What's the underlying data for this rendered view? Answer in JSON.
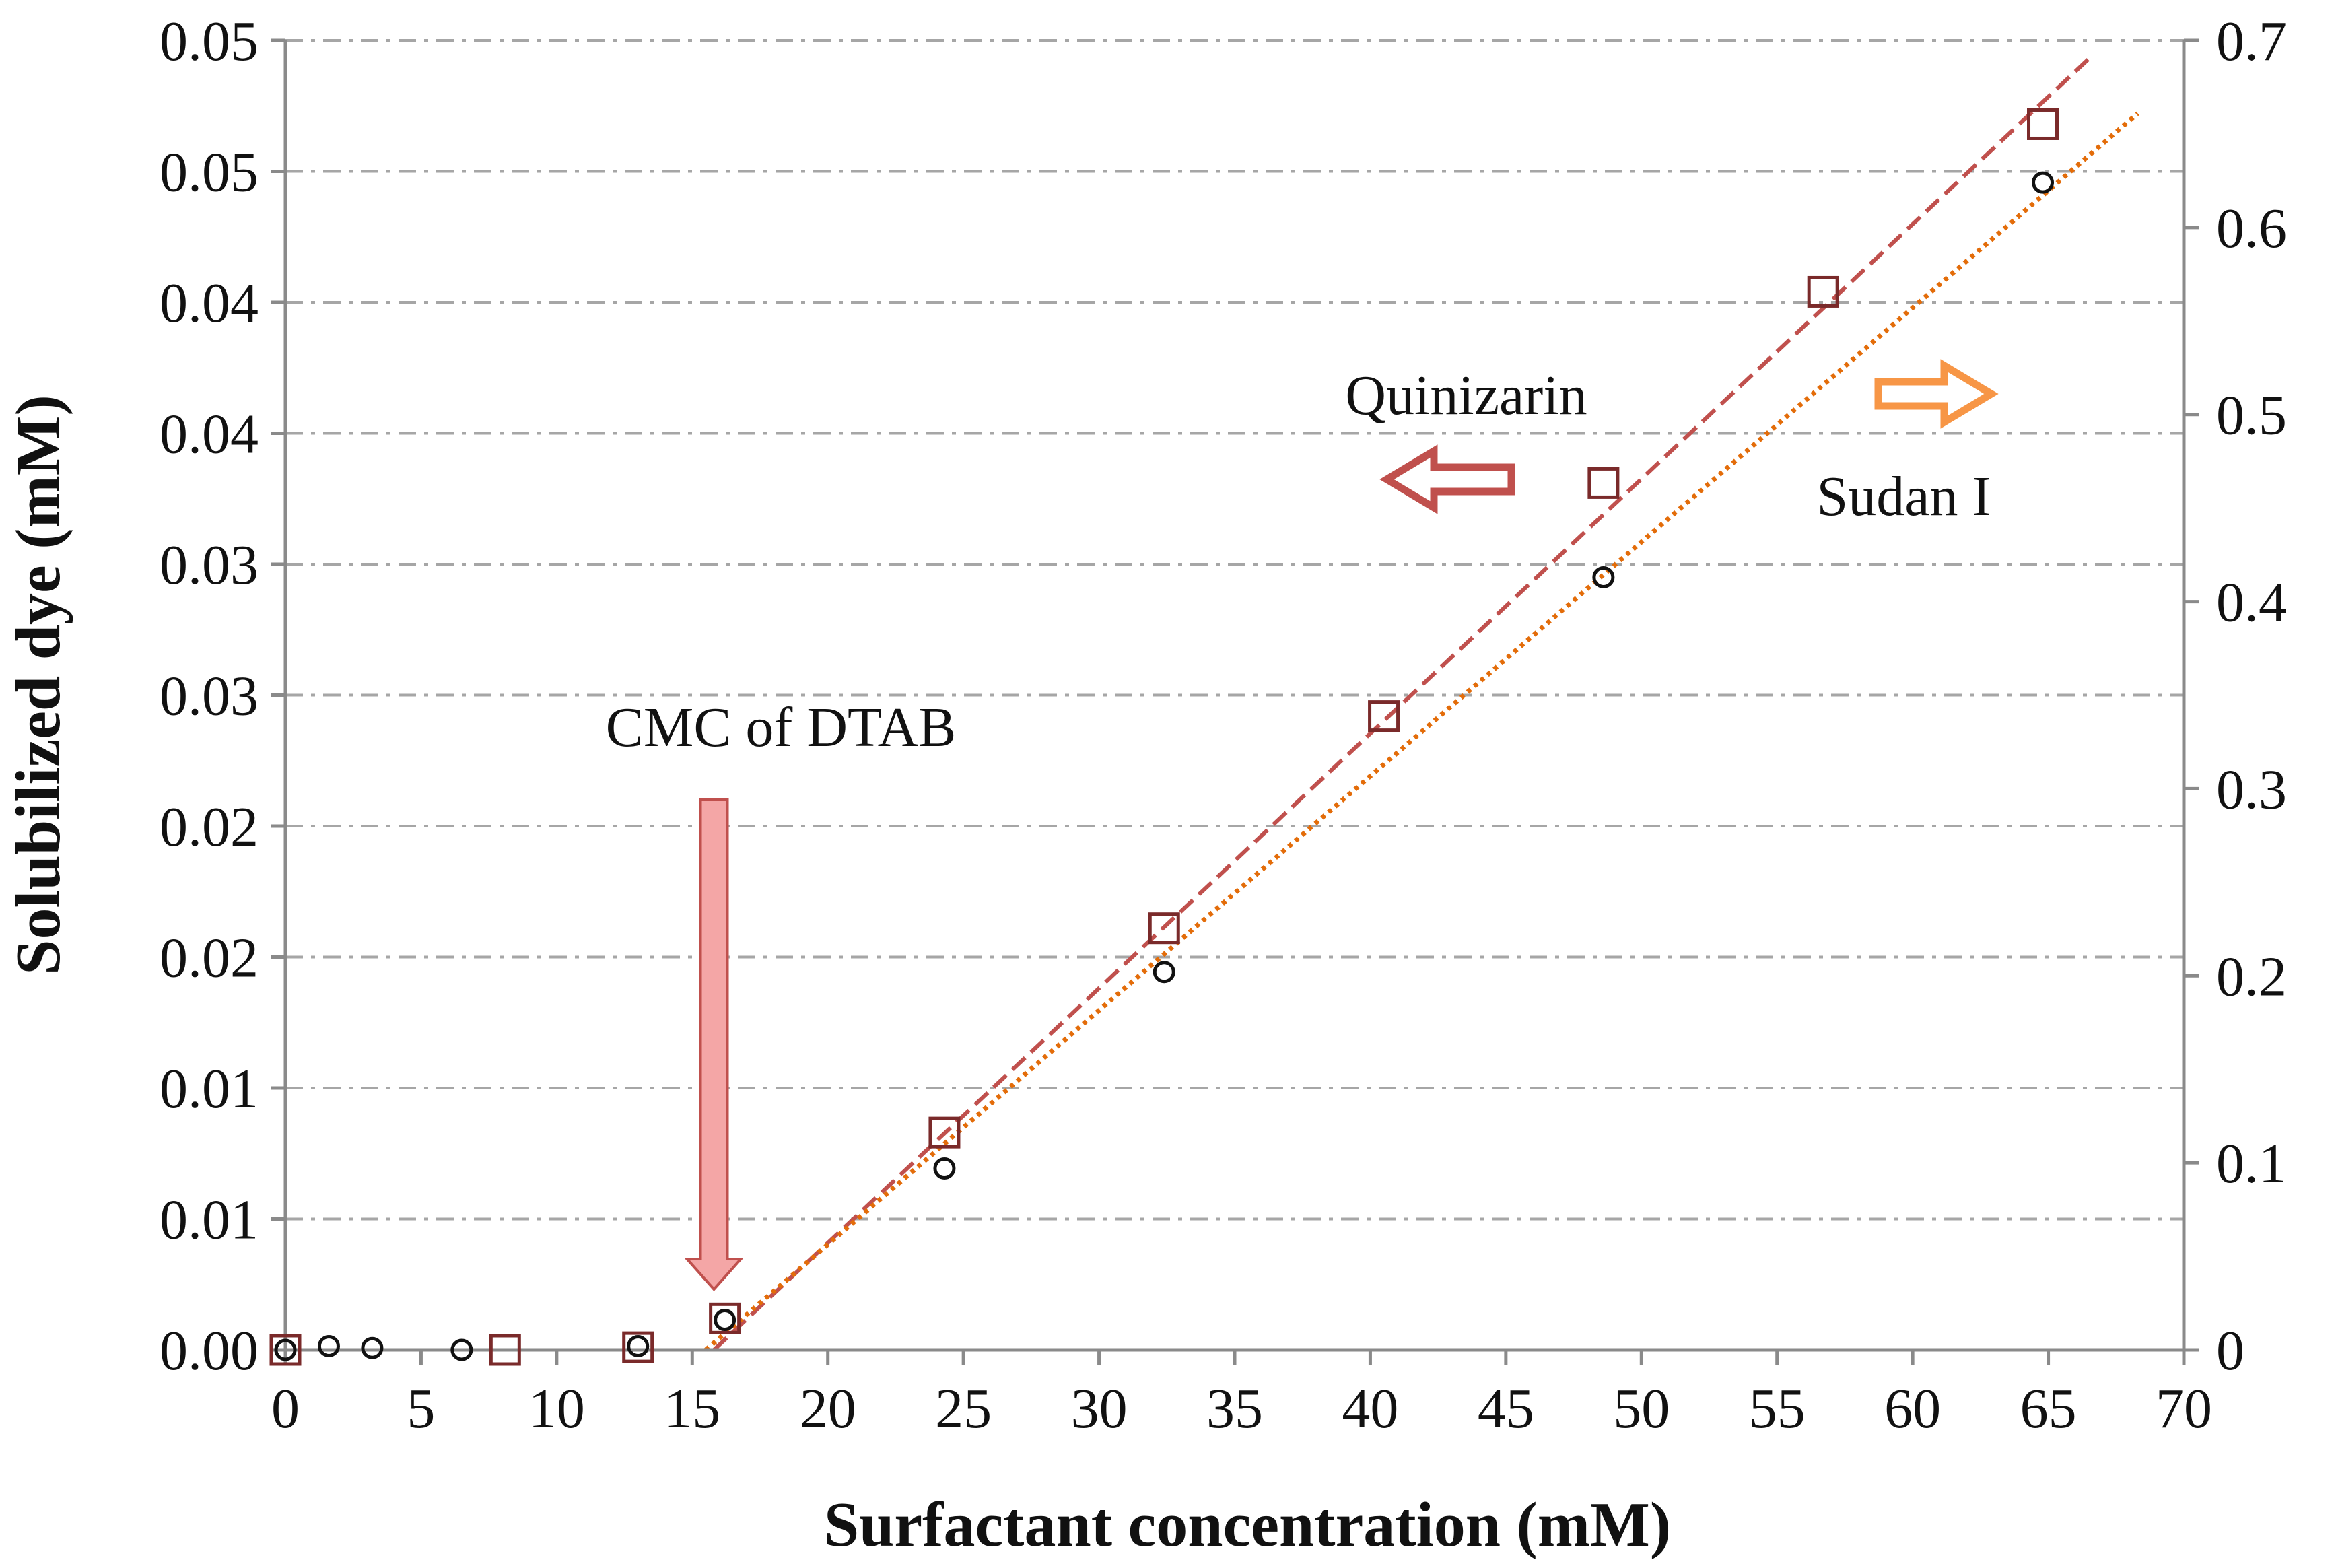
{
  "chart_data": {
    "type": "scatter",
    "title": "",
    "xlabel": "Surfactant concentration (mM)",
    "ylabel": "Solubilized dye (mM)",
    "xlim": [
      0,
      70
    ],
    "ylim_left": [
      0,
      0.05
    ],
    "ylim_right": [
      0,
      0.7
    ],
    "grid": "horizontal dash-dot",
    "x_ticks": [
      "0",
      "5",
      "10",
      "15",
      "20",
      "25",
      "30",
      "35",
      "40",
      "45",
      "50",
      "55",
      "60",
      "65",
      "70"
    ],
    "y_left_ticks": [
      "0.00",
      "0.01",
      "0.01",
      "0.02",
      "0.02",
      "0.03",
      "0.03",
      "0.04",
      "0.04",
      "0.05",
      "0.05"
    ],
    "y_right_ticks": [
      "0",
      "0.1",
      "0.2",
      "0.3",
      "0.4",
      "0.5",
      "0.6",
      "0.7"
    ],
    "series": [
      {
        "name": "Quinizarin",
        "axis": "left",
        "marker": "square",
        "color": "#7a2a2a",
        "points": [
          {
            "x": 0,
            "y": 0.0
          },
          {
            "x": 8.1,
            "y": 0.0
          },
          {
            "x": 13,
            "y": 0.0001
          },
          {
            "x": 16.2,
            "y": 0.0012
          },
          {
            "x": 24.3,
            "y": 0.0083
          },
          {
            "x": 32.4,
            "y": 0.0161
          },
          {
            "x": 40.5,
            "y": 0.0242
          },
          {
            "x": 48.6,
            "y": 0.0331
          },
          {
            "x": 56.7,
            "y": 0.0404
          },
          {
            "x": 64.8,
            "y": 0.0468
          }
        ],
        "fit": {
          "style": "dashed",
          "color": "#c0504d",
          "x": [
            15.8,
            66.6
          ],
          "y": [
            0.0,
            0.0494
          ]
        }
      },
      {
        "name": "Sudan I",
        "axis": "right",
        "marker": "circle",
        "color": "#111111",
        "points": [
          {
            "x": 0,
            "y": 0.0
          },
          {
            "x": 1.6,
            "y": 0.002
          },
          {
            "x": 3.2,
            "y": 0.001
          },
          {
            "x": 6.5,
            "y": 0.0
          },
          {
            "x": 13,
            "y": 0.002
          },
          {
            "x": 16.2,
            "y": 0.016
          },
          {
            "x": 24.3,
            "y": 0.097
          },
          {
            "x": 32.4,
            "y": 0.202
          },
          {
            "x": 48.6,
            "y": 0.413
          },
          {
            "x": 64.8,
            "y": 0.624
          }
        ],
        "fit": {
          "style": "dotted",
          "color": "#e36c09",
          "x": [
            15.5,
            68.3
          ],
          "y": [
            0.0,
            0.661
          ]
        }
      }
    ],
    "annotations": {
      "cmc": {
        "label": "CMC of DTAB",
        "x": 15.8,
        "color": "#f4a6a6"
      },
      "quinizarin": {
        "label": "Quinizarin",
        "direction": "left",
        "color": "#c0504d"
      },
      "sudan": {
        "label": "Sudan I",
        "direction": "right",
        "color": "#f79646"
      }
    }
  }
}
